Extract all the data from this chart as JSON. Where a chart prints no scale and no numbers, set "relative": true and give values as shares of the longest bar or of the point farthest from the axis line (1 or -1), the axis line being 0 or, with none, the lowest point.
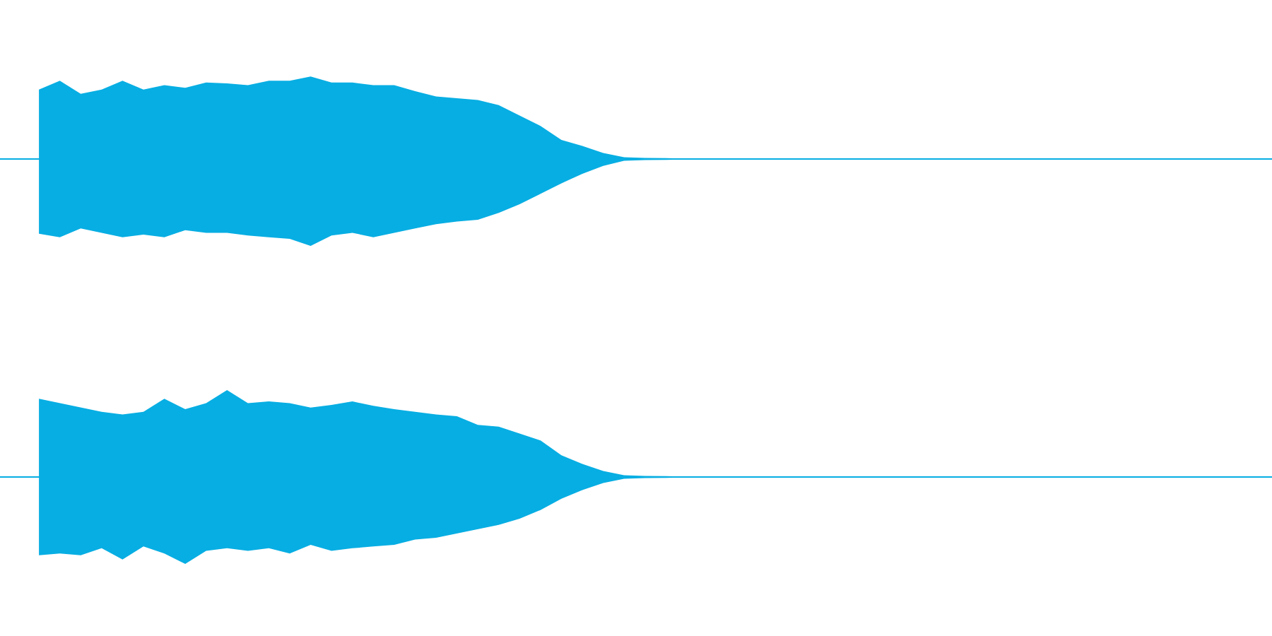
{
  "chart_data": [
    {
      "type": "area",
      "relative": true,
      "ref_lines": [
        {
          "axis": "y",
          "value": 0,
          "color": "#07aee3"
        }
      ],
      "categories": [
        null,
        null,
        null,
        null,
        null,
        null,
        null,
        null,
        null,
        null,
        null,
        null,
        null,
        null,
        null,
        null,
        null,
        null,
        null,
        null,
        null,
        null,
        null,
        null,
        null,
        null,
        null,
        null,
        null,
        null,
        null,
        null,
        null,
        null,
        null,
        null,
        null,
        null,
        null,
        null,
        null,
        null,
        null,
        null,
        null,
        null,
        null,
        null,
        null,
        null,
        null,
        null,
        null,
        null,
        null,
        null,
        null,
        null,
        null,
        null
      ],
      "series": [
        {
          "color": "#07aee3",
          "values": [
            0.8,
            0.9,
            0.75,
            0.8,
            0.9,
            0.8,
            0.85,
            0.82,
            0.88,
            0.87,
            0.85,
            0.9,
            0.9,
            0.95,
            0.88,
            0.88,
            0.85,
            0.85,
            0.78,
            0.72,
            0.7,
            0.68,
            0.62,
            0.5,
            0.38,
            0.22,
            0.15,
            0.07,
            0.02,
            0.012,
            0.01,
            0.005,
            0.005,
            0.005,
            0.005,
            0.005,
            0.005,
            0,
            0,
            0,
            0,
            0,
            0,
            0,
            0,
            0,
            0,
            0,
            0,
            0,
            0,
            0,
            0,
            0,
            0,
            0,
            0,
            0,
            0,
            0
          ]
        },
        {
          "color": "#07aee3",
          "values": [
            -0.86,
            -0.9,
            -0.8,
            -0.85,
            -0.9,
            -0.87,
            -0.9,
            -0.82,
            -0.85,
            -0.85,
            -0.88,
            -0.9,
            -0.92,
            -1,
            -0.88,
            -0.85,
            -0.9,
            -0.85,
            -0.8,
            -0.75,
            -0.72,
            -0.7,
            -0.62,
            -0.52,
            -0.4,
            -0.28,
            -0.17,
            -0.08,
            -0.02,
            -0.012,
            -0.01,
            -0.005,
            -0.005,
            -0.005,
            -0.005,
            -0.005,
            -0.005,
            0,
            0,
            0,
            0,
            0,
            0,
            0,
            0,
            0,
            0,
            0,
            0,
            0,
            0,
            0,
            0,
            0,
            0,
            0,
            0,
            0,
            0,
            0
          ]
        }
      ]
    },
    {
      "type": "area",
      "relative": true,
      "ref_lines": [
        {
          "axis": "y",
          "value": 0,
          "color": "#07aee3"
        }
      ],
      "categories": [
        null,
        null,
        null,
        null,
        null,
        null,
        null,
        null,
        null,
        null,
        null,
        null,
        null,
        null,
        null,
        null,
        null,
        null,
        null,
        null,
        null,
        null,
        null,
        null,
        null,
        null,
        null,
        null,
        null,
        null,
        null,
        null,
        null,
        null,
        null,
        null,
        null,
        null,
        null,
        null,
        null,
        null,
        null,
        null,
        null,
        null,
        null,
        null,
        null,
        null,
        null,
        null,
        null,
        null,
        null,
        null,
        null,
        null,
        null,
        null
      ],
      "series": [
        {
          "color": "#07aee3",
          "values": [
            0.9,
            0.85,
            0.8,
            0.75,
            0.72,
            0.75,
            0.9,
            0.78,
            0.85,
            1,
            0.85,
            0.87,
            0.85,
            0.8,
            0.83,
            0.87,
            0.82,
            0.78,
            0.75,
            0.72,
            0.7,
            0.6,
            0.58,
            0.5,
            0.42,
            0.25,
            0.15,
            0.07,
            0.02,
            0.012,
            0.01,
            0.005,
            0.005,
            0.005,
            0.005,
            0.005,
            0.005,
            0.005,
            0,
            0,
            0,
            0,
            0,
            0,
            0,
            0,
            0,
            0,
            0,
            0,
            0,
            0,
            0,
            0,
            0,
            0,
            0,
            0,
            0,
            0
          ]
        },
        {
          "color": "#07aee3",
          "values": [
            -0.9,
            -0.88,
            -0.9,
            -0.82,
            -0.95,
            -0.8,
            -0.88,
            -1,
            -0.85,
            -0.82,
            -0.85,
            -0.82,
            -0.88,
            -0.78,
            -0.85,
            -0.82,
            -0.8,
            -0.78,
            -0.72,
            -0.7,
            -0.65,
            -0.6,
            -0.55,
            -0.48,
            -0.38,
            -0.25,
            -0.15,
            -0.07,
            -0.02,
            -0.012,
            -0.01,
            -0.005,
            -0.005,
            -0.005,
            -0.005,
            -0.005,
            -0.005,
            -0.005,
            0,
            0,
            0,
            0,
            0,
            0,
            0,
            0,
            0,
            0,
            0,
            0,
            0,
            0,
            0,
            0,
            0,
            0,
            0,
            0,
            0,
            0
          ]
        }
      ]
    }
  ]
}
